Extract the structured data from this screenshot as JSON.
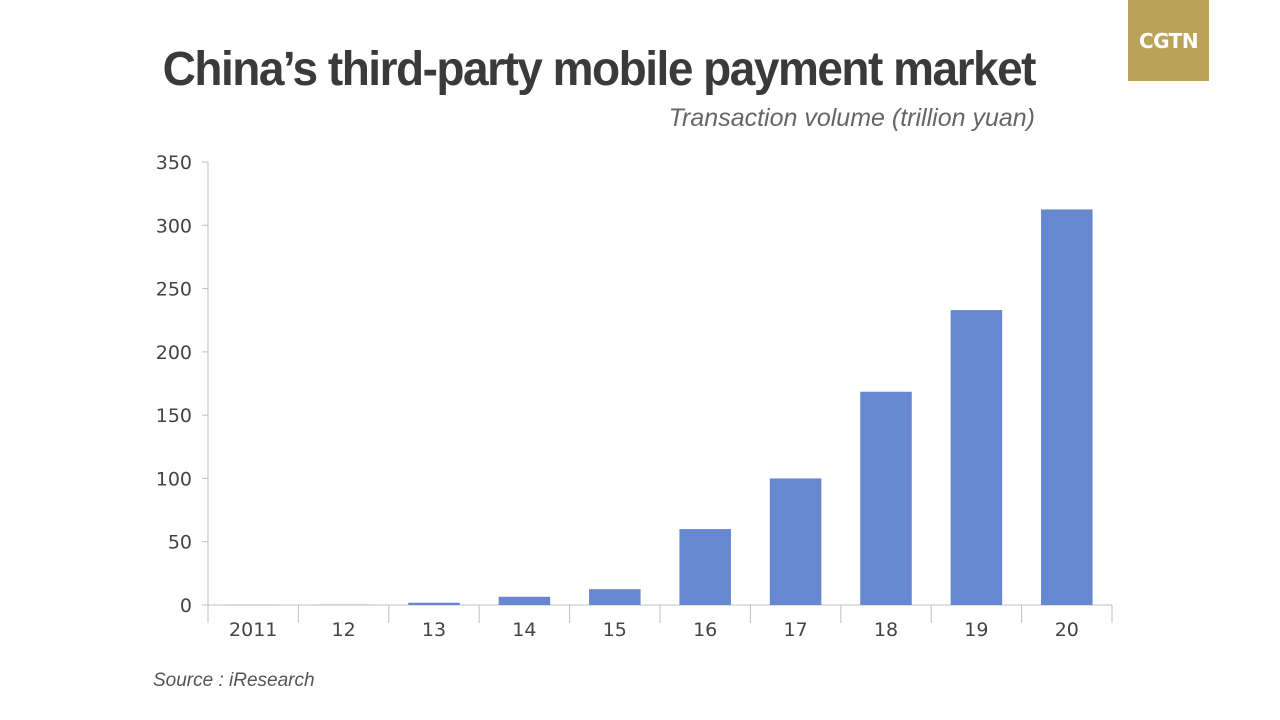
{
  "logo": {
    "text": "CGTN",
    "color": "#b9a35a"
  },
  "source": "Source :  iResearch",
  "chart_data": {
    "type": "bar",
    "title": "China’s third-party mobile payment market",
    "subtitle": "Transaction volume (trillion yuan)",
    "categories": [
      "2011",
      "12",
      "13",
      "14",
      "15",
      "16",
      "17",
      "18",
      "19",
      "20"
    ],
    "values": [
      0.1,
      0.15,
      1.8,
      6.5,
      12.5,
      60,
      100,
      168.5,
      233,
      312.5
    ],
    "ylim": [
      0,
      350
    ],
    "yticks": [
      0,
      50,
      100,
      150,
      200,
      250,
      300,
      350
    ],
    "xlabel": "",
    "ylabel": "",
    "grid": false,
    "bar_color": "#6787d1"
  }
}
